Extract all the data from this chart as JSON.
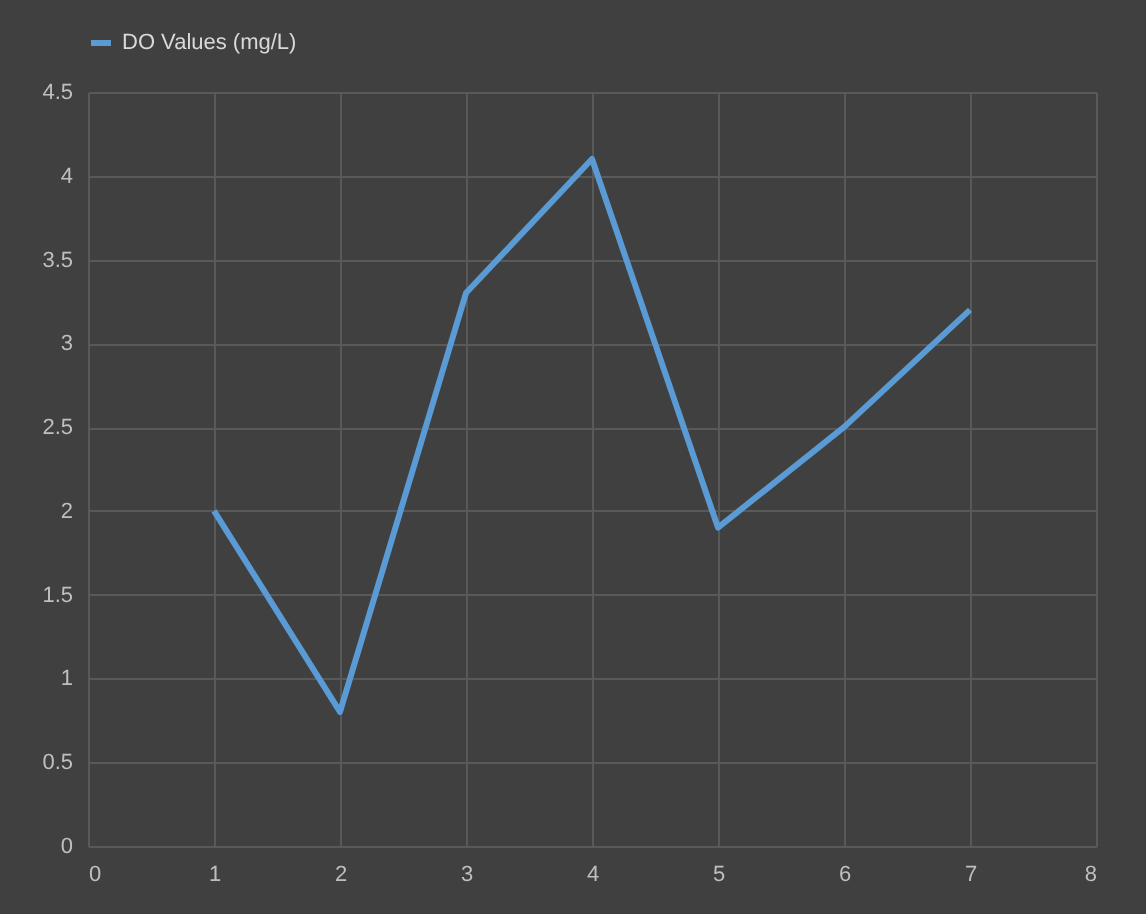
{
  "chart_data": {
    "type": "line",
    "x": [
      1,
      2,
      3,
      4,
      5,
      6,
      7
    ],
    "series": [
      {
        "name": "DO Values (mg/L)",
        "color": "#5b9bd5",
        "values": [
          2.0,
          0.8,
          3.3,
          4.1,
          1.9,
          2.5,
          3.2
        ]
      }
    ],
    "xlim": [
      0,
      8
    ],
    "xticks": [
      0,
      1,
      2,
      3,
      4,
      5,
      6,
      7,
      8
    ],
    "ylim": [
      0,
      4.5
    ],
    "yticks": [
      0,
      0.5,
      1,
      1.5,
      2,
      2.5,
      3,
      3.5,
      4,
      4.5
    ],
    "grid": true,
    "legend": "top",
    "marker": "none",
    "line_style": "solid"
  }
}
